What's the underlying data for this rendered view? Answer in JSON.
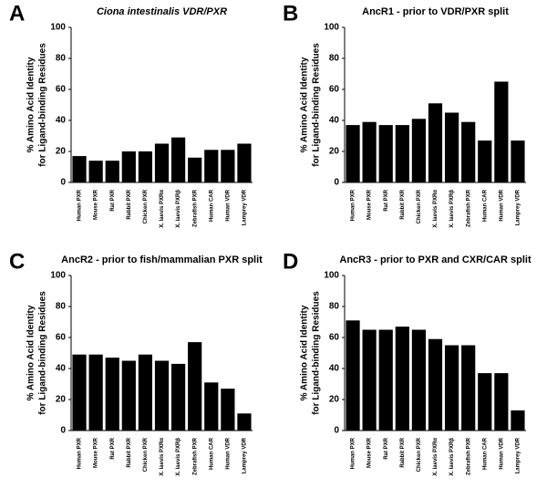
{
  "chart_data": [
    {
      "type": "bar",
      "panel": "A",
      "title": "Ciona intestinalis VDR/PXR",
      "ylabel": [
        "% Amino Acid Identity",
        "for Ligand-binding Residues"
      ],
      "categories": [
        "Human PXR",
        "Mouse PXR",
        "Rat PXR",
        "Rabbit PXR",
        "Chicken PXR",
        "X. laevis PXRα",
        "X. laevis PXRβ",
        "Zebrafish PXR",
        "Human CAR",
        "Human VDR",
        "Lamprey VDR"
      ],
      "values": [
        17,
        14,
        14,
        20,
        20,
        25,
        29,
        16,
        21,
        21,
        25
      ],
      "color": "#000000",
      "ylim": [
        0,
        100
      ],
      "yticks": [
        0,
        20,
        40,
        60,
        80,
        100
      ]
    },
    {
      "type": "bar",
      "panel": "B",
      "title": "AncR1 - prior to VDR/PXR split",
      "ylabel": [
        "% Amino Acid Identity",
        "for Ligand-binding Residues"
      ],
      "categories": [
        "Human PXR",
        "Mouse PXR",
        "Rat PXR",
        "Rabbit PXR",
        "Chicken PXR",
        "X. laevis PXRα",
        "X. laevis PXRβ",
        "Zebrafish PXR",
        "Human CAR",
        "Human VDR",
        "Lamprey VDR"
      ],
      "values": [
        37,
        39,
        37,
        37,
        41,
        51,
        45,
        39,
        27,
        65,
        27
      ],
      "color": "#000000",
      "ylim": [
        0,
        100
      ],
      "yticks": [
        0,
        20,
        40,
        60,
        80,
        100
      ]
    },
    {
      "type": "bar",
      "panel": "C",
      "title": "AncR2 - prior to fish/mammalian PXR split",
      "ylabel": [
        "% Amino Acid Identity",
        "for Ligand-binding Residues"
      ],
      "categories": [
        "Human PXR",
        "Mouse PXR",
        "Rat PXR",
        "Rabbit PXR",
        "Chicken PXR",
        "X. laevis PXRα",
        "X. laevis PXRβ",
        "Zebrafish PXR",
        "Human CAR",
        "Human VDR",
        "Lamprey VDR"
      ],
      "values": [
        49,
        49,
        47,
        45,
        49,
        45,
        43,
        57,
        31,
        27,
        11
      ],
      "color": "#000000",
      "ylim": [
        0,
        100
      ],
      "yticks": [
        0,
        20,
        40,
        60,
        80,
        100
      ]
    },
    {
      "type": "bar",
      "panel": "D",
      "title": "AncR3 - prior to PXR and CXR/CAR split",
      "ylabel": [
        "% Amino Acid Identity",
        "for Ligand-binding Residues"
      ],
      "categories": [
        "Human PXR",
        "Mouse PXR",
        "Rat PXR",
        "Rabbit PXR",
        "Chicken PXR",
        "X. laevis PXRα",
        "X. laevis PXRβ",
        "Zebrafish PXR",
        "Human CAR",
        "Human VDR",
        "Lamprey VDR"
      ],
      "values": [
        71,
        65,
        65,
        67,
        65,
        59,
        55,
        55,
        37,
        37,
        13
      ],
      "color": "#000000",
      "ylim": [
        0,
        100
      ],
      "yticks": [
        0,
        20,
        40,
        60,
        80,
        100
      ]
    }
  ]
}
